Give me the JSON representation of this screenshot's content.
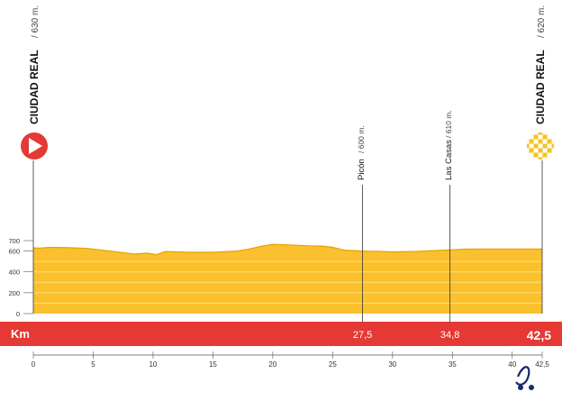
{
  "chart_data": {
    "type": "area",
    "x_unit": "Km",
    "total_distance": "42,5",
    "xlim": [
      0,
      42.5
    ],
    "ylim": [
      0,
      1000
    ],
    "y_ticks": [
      "0",
      "200",
      "400",
      "600",
      "700"
    ],
    "x_ticks": [
      "0",
      "5",
      "10",
      "15",
      "20",
      "25",
      "30",
      "35",
      "40",
      "42,5"
    ],
    "profile": {
      "x": [
        0,
        0.5,
        1.5,
        3,
        4.5,
        6,
        7.5,
        8.5,
        9.5,
        10.3,
        11,
        12,
        13,
        15,
        17,
        18,
        19,
        20,
        21,
        22,
        23,
        24,
        25,
        26,
        27.5,
        28.5,
        30,
        32,
        34.8,
        36,
        38,
        40,
        42.5
      ],
      "y": [
        630,
        628,
        635,
        632,
        625,
        605,
        585,
        570,
        580,
        565,
        595,
        592,
        588,
        588,
        600,
        618,
        645,
        665,
        660,
        655,
        650,
        648,
        635,
        608,
        600,
        598,
        592,
        596,
        610,
        618,
        620,
        620,
        620
      ]
    },
    "start": {
      "name": "CIUDAD REAL",
      "altitude": "/ 630 m."
    },
    "finish": {
      "name": "CIUDAD REAL",
      "altitude": "/ 620 m."
    },
    "waypoints": [
      {
        "name": "Picón",
        "altitude": "/ 600 m.",
        "km": 27.5,
        "km_label": "27,5"
      },
      {
        "name": "Las Casas",
        "altitude": "/ 610 m.",
        "km": 34.8,
        "km_label": "34,8"
      }
    ],
    "colors": {
      "fill": "#fbc02d",
      "fill_top": "#f4b400",
      "band": "#e53935",
      "start_marker": "#e53935",
      "finish_marker": "#f6c120"
    }
  }
}
